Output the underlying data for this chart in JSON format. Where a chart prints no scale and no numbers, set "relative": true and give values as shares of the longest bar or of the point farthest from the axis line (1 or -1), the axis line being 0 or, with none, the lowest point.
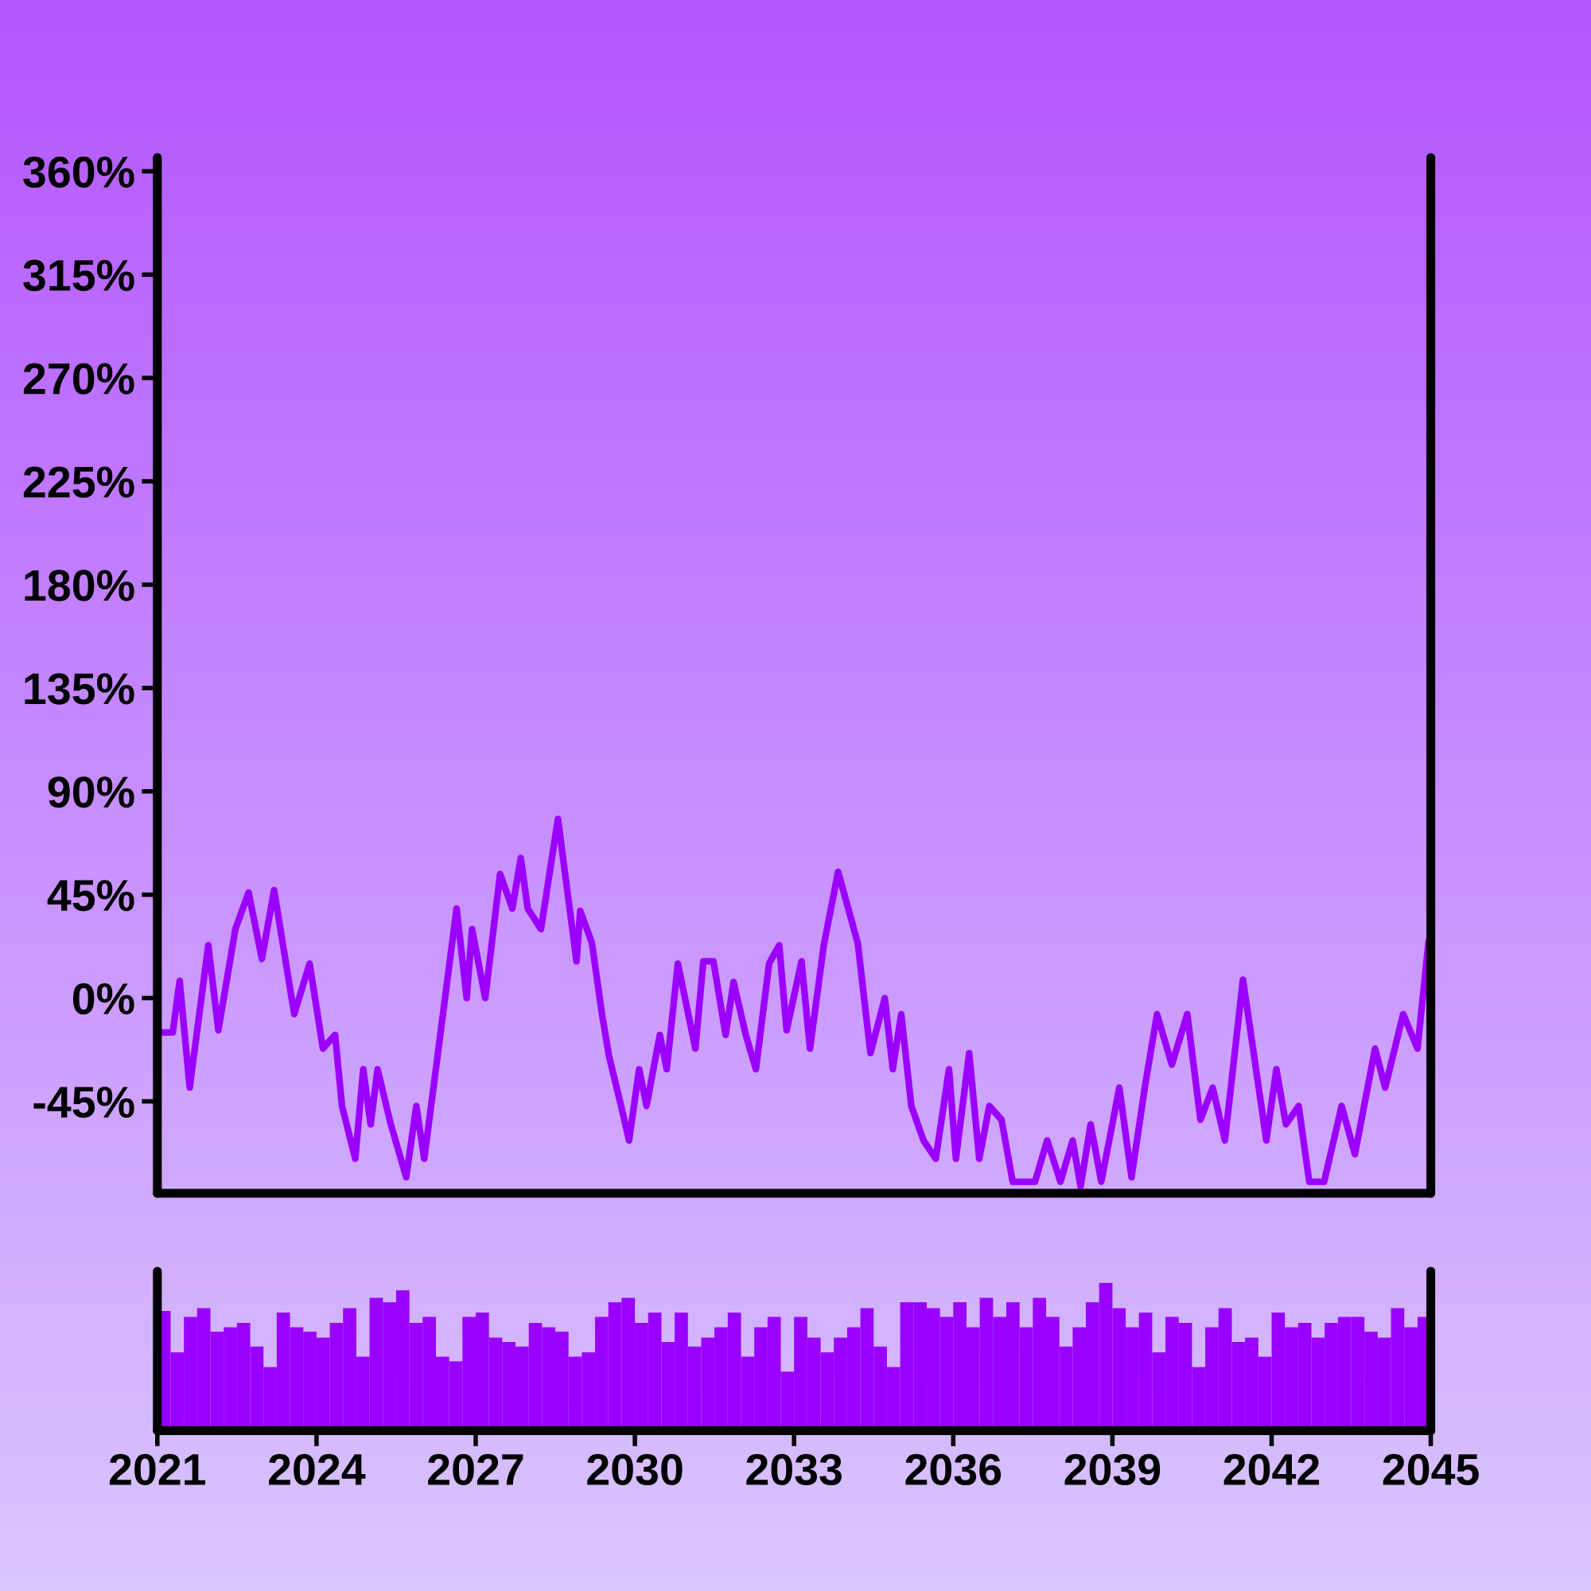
{
  "chart_data": [
    {
      "type": "line",
      "color": "#9b00ff",
      "line_style": "solid",
      "marker": "none",
      "x": [
        2021.1,
        2021.29,
        2021.42,
        2021.61,
        2021.96,
        2022.15,
        2022.47,
        2022.72,
        2022.97,
        2023.2,
        2023.58,
        2023.87,
        2024.12,
        2024.35,
        2024.48,
        2024.73,
        2024.88,
        2025.02,
        2025.15,
        2025.4,
        2025.69,
        2025.88,
        2026.03,
        2026.26,
        2026.64,
        2026.83,
        2026.93,
        2027.18,
        2027.46,
        2027.69,
        2027.85,
        2027.98,
        2028.23,
        2028.55,
        2028.9,
        2028.97,
        2029.19,
        2029.38,
        2029.51,
        2029.74,
        2029.89,
        2030.08,
        2030.22,
        2030.47,
        2030.6,
        2030.81,
        2031.14,
        2031.29,
        2031.48,
        2031.71,
        2031.86,
        2032.09,
        2032.28,
        2032.53,
        2032.72,
        2032.86,
        2033.14,
        2033.3,
        2033.56,
        2033.83,
        2034.2,
        2034.44,
        2034.71,
        2034.86,
        2035.02,
        2035.21,
        2035.44,
        2035.67,
        2035.92,
        2036.05,
        2036.3,
        2036.49,
        2036.68,
        2036.91,
        2037.12,
        2037.54,
        2037.77,
        2038.02,
        2038.25,
        2038.4,
        2038.59,
        2038.79,
        2039.13,
        2039.36,
        2039.61,
        2039.84,
        2040.12,
        2040.41,
        2040.66,
        2040.89,
        2041.12,
        2041.46,
        2041.65,
        2041.9,
        2042.09,
        2042.27,
        2042.51,
        2042.71,
        2042.99,
        2043.32,
        2043.57,
        2043.95,
        2044.14,
        2044.48,
        2044.75,
        2044.96
      ],
      "values": [
        -15,
        -15,
        7.5,
        -39,
        23,
        -14,
        30,
        46,
        17,
        47,
        -7,
        15,
        -22,
        -16,
        -47,
        -70,
        -31,
        -55,
        -31,
        -55,
        -78,
        -47,
        -70,
        -29,
        39,
        0,
        30,
        0,
        54,
        39,
        61,
        39,
        30,
        78,
        16,
        38,
        24,
        -7,
        -25,
        -47,
        -62,
        -31,
        -47,
        -16,
        -31,
        15,
        -22,
        16,
        16,
        -16,
        7,
        -16,
        -31,
        15,
        23,
        -14,
        16,
        -22,
        23,
        55,
        24,
        -24,
        0,
        -31,
        -7,
        -47,
        -62,
        -70,
        -31,
        -70,
        -24,
        -70,
        -47,
        -53,
        -80,
        -80,
        -62,
        -80,
        -62,
        -82,
        -55,
        -80,
        -39,
        -78,
        -39,
        -7,
        -29,
        -7,
        -53,
        -39,
        -62,
        8,
        -22,
        -62,
        -31,
        -55,
        -47,
        -80,
        -80,
        -47,
        -68,
        -22,
        -39,
        -7,
        -22,
        25
      ],
      "xlim": [
        2021,
        2045
      ],
      "ylim": [
        -85,
        366
      ],
      "yticks": [
        {
          "value": 360,
          "label": "360%"
        },
        {
          "value": 315,
          "label": "315%"
        },
        {
          "value": 270,
          "label": "270%"
        },
        {
          "value": 225,
          "label": "225%"
        },
        {
          "value": 180,
          "label": "180%"
        },
        {
          "value": 135,
          "label": "135%"
        },
        {
          "value": 90,
          "label": "90%"
        },
        {
          "value": 45,
          "label": "45%"
        },
        {
          "value": 0,
          "label": "0%"
        },
        {
          "value": -45,
          "label": "-45%"
        }
      ],
      "tick_labels": "y",
      "grid": false,
      "legend": false
    },
    {
      "type": "bar",
      "color": "#9900ff",
      "relative": true,
      "x": [
        2021.125,
        2021.375,
        2021.625,
        2021.875,
        2022.125,
        2022.375,
        2022.625,
        2022.875,
        2023.125,
        2023.375,
        2023.625,
        2023.875,
        2024.125,
        2024.375,
        2024.625,
        2024.875,
        2025.125,
        2025.375,
        2025.625,
        2025.875,
        2026.125,
        2026.375,
        2026.625,
        2026.875,
        2027.125,
        2027.375,
        2027.625,
        2027.875,
        2028.125,
        2028.375,
        2028.625,
        2028.875,
        2029.125,
        2029.375,
        2029.625,
        2029.875,
        2030.125,
        2030.375,
        2030.625,
        2030.875,
        2031.125,
        2031.375,
        2031.625,
        2031.875,
        2032.125,
        2032.375,
        2032.625,
        2032.875,
        2033.125,
        2033.375,
        2033.625,
        2033.875,
        2034.125,
        2034.375,
        2034.625,
        2034.875,
        2035.125,
        2035.375,
        2035.625,
        2035.875,
        2036.125,
        2036.375,
        2036.625,
        2036.875,
        2037.125,
        2037.375,
        2037.625,
        2037.875,
        2038.125,
        2038.375,
        2038.625,
        2038.875,
        2039.125,
        2039.375,
        2039.625,
        2039.875,
        2040.125,
        2040.375,
        2040.625,
        2040.875,
        2041.125,
        2041.375,
        2041.625,
        2041.875,
        2042.125,
        2042.375,
        2042.625,
        2042.875,
        2043.125,
        2043.375,
        2043.625,
        2043.875,
        2044.125,
        2044.375,
        2044.625,
        2044.875
      ],
      "values": [
        0.81,
        0.53,
        0.77,
        0.83,
        0.67,
        0.7,
        0.73,
        0.57,
        0.43,
        0.8,
        0.7,
        0.67,
        0.63,
        0.73,
        0.83,
        0.5,
        0.9,
        0.87,
        0.95,
        0.73,
        0.77,
        0.5,
        0.47,
        0.77,
        0.8,
        0.63,
        0.6,
        0.57,
        0.73,
        0.7,
        0.67,
        0.5,
        0.53,
        0.77,
        0.87,
        0.9,
        0.73,
        0.8,
        0.6,
        0.8,
        0.57,
        0.63,
        0.7,
        0.8,
        0.5,
        0.7,
        0.77,
        0.4,
        0.77,
        0.63,
        0.53,
        0.63,
        0.7,
        0.83,
        0.57,
        0.43,
        0.87,
        0.87,
        0.83,
        0.77,
        0.87,
        0.7,
        0.9,
        0.77,
        0.87,
        0.7,
        0.9,
        0.77,
        0.57,
        0.7,
        0.87,
        1.0,
        0.83,
        0.7,
        0.8,
        0.53,
        0.77,
        0.73,
        0.43,
        0.7,
        0.83,
        0.6,
        0.63,
        0.5,
        0.8,
        0.7,
        0.73,
        0.63,
        0.73,
        0.77,
        0.77,
        0.67,
        0.63,
        0.83,
        0.7,
        0.77
      ],
      "xlim": [
        2021,
        2045
      ],
      "xticks": [
        2021,
        2024,
        2027,
        2030,
        2033,
        2036,
        2039,
        2042,
        2045
      ],
      "tick_labels": "x",
      "grid": false,
      "legend": false
    }
  ]
}
